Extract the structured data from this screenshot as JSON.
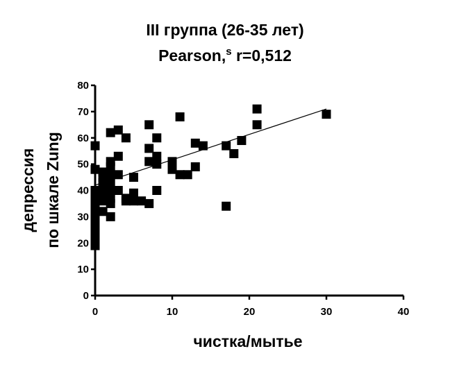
{
  "chart_data": {
    "type": "scatter",
    "title": "III группа (26-35 лет)",
    "subtitle": "Pearson,s r=0,512",
    "xlabel": "чистка/мытье",
    "ylabel": [
      "депрессия",
      "по шкале Zung"
    ],
    "xlim": [
      0,
      40
    ],
    "ylim": [
      0,
      80
    ],
    "x_ticks": [
      0,
      10,
      20,
      30,
      40
    ],
    "y_ticks": [
      0,
      10,
      20,
      30,
      40,
      50,
      60,
      70,
      80
    ],
    "grid": false,
    "trendline": {
      "x": [
        0,
        30
      ],
      "y": [
        42,
        71
      ]
    },
    "points": [
      [
        0,
        57
      ],
      [
        0,
        48
      ],
      [
        0,
        40
      ],
      [
        0,
        38
      ],
      [
        0,
        35
      ],
      [
        0,
        34
      ],
      [
        0,
        31
      ],
      [
        0,
        29
      ],
      [
        0,
        27
      ],
      [
        0,
        25
      ],
      [
        0,
        22
      ],
      [
        0,
        20
      ],
      [
        0,
        19
      ],
      [
        1,
        47
      ],
      [
        1,
        45
      ],
      [
        1,
        43
      ],
      [
        1,
        41
      ],
      [
        1,
        39
      ],
      [
        1,
        36
      ],
      [
        1,
        32
      ],
      [
        2,
        62
      ],
      [
        2,
        51
      ],
      [
        2,
        49
      ],
      [
        2,
        46
      ],
      [
        2,
        43
      ],
      [
        2,
        40
      ],
      [
        2,
        37
      ],
      [
        2,
        35
      ],
      [
        2,
        30
      ],
      [
        3,
        63
      ],
      [
        3,
        53
      ],
      [
        3,
        46
      ],
      [
        3,
        40
      ],
      [
        4,
        60
      ],
      [
        4,
        37
      ],
      [
        4,
        36
      ],
      [
        5,
        45
      ],
      [
        5,
        39
      ],
      [
        5,
        37
      ],
      [
        5,
        36
      ],
      [
        6,
        36
      ],
      [
        7,
        65
      ],
      [
        7,
        56
      ],
      [
        7,
        51
      ],
      [
        7,
        35
      ],
      [
        8,
        60
      ],
      [
        8,
        53
      ],
      [
        8,
        50
      ],
      [
        8,
        40
      ],
      [
        10,
        51
      ],
      [
        10,
        48
      ],
      [
        11,
        68
      ],
      [
        11,
        46
      ],
      [
        12,
        46
      ],
      [
        13,
        58
      ],
      [
        13,
        49
      ],
      [
        14,
        57
      ],
      [
        17,
        57
      ],
      [
        17,
        34
      ],
      [
        18,
        54
      ],
      [
        19,
        59
      ],
      [
        21,
        71
      ],
      [
        21,
        65
      ],
      [
        30,
        69
      ]
    ]
  }
}
